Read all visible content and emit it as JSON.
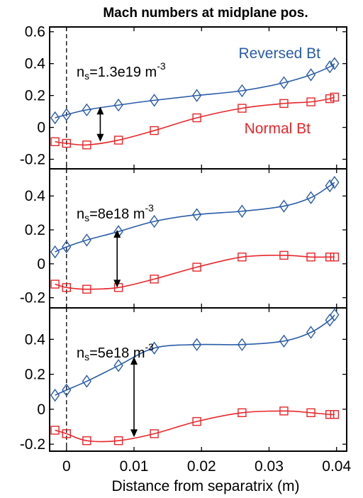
{
  "title": "Mach numbers at midplane pos.",
  "xlabel": "Distance from separatrix (m)",
  "colors": {
    "reversed": "#2a5ca8",
    "normal": "#e8262a",
    "frame": "#000000"
  },
  "chart_data": [
    {
      "type": "line",
      "density_label": {
        "prefix": "n",
        "sub": "s",
        "text": "=1.3e19 m",
        "sup": "-3"
      },
      "series": [
        {
          "name": "Reversed Bt",
          "marker": "diamond",
          "x": [
            -0.0017,
            0,
            0.003,
            0.0077,
            0.013,
            0.0193,
            0.026,
            0.0322,
            0.0362,
            0.039,
            0.0397
          ],
          "y": [
            0.06,
            0.08,
            0.11,
            0.14,
            0.17,
            0.2,
            0.23,
            0.28,
            0.33,
            0.38,
            0.4
          ]
        },
        {
          "name": "Normal Bt",
          "marker": "square",
          "x": [
            -0.0017,
            0,
            0.003,
            0.0077,
            0.013,
            0.0193,
            0.026,
            0.0322,
            0.0362,
            0.039,
            0.0397
          ],
          "y": [
            -0.09,
            -0.1,
            -0.11,
            -0.08,
            -0.02,
            0.06,
            0.12,
            0.15,
            0.16,
            0.18,
            0.19
          ]
        }
      ],
      "arrow": {
        "x": 0.005,
        "y_top": 0.13,
        "y_bottom": -0.09
      },
      "yticks": [
        0.6,
        0.4,
        0.2,
        0,
        -0.2
      ],
      "ytick_labels": [
        "0.6",
        "0.4",
        "0.2",
        "0",
        "-0.2"
      ],
      "ylim": [
        -0.26,
        0.63
      ],
      "xlim": [
        -0.0025,
        0.0415
      ]
    },
    {
      "type": "line",
      "density_label": {
        "prefix": "n",
        "sub": "s",
        "text": "=8e18 m",
        "sup": "-3"
      },
      "series": [
        {
          "name": "Reversed Bt",
          "marker": "diamond",
          "x": [
            -0.0017,
            0,
            0.003,
            0.0077,
            0.013,
            0.0193,
            0.026,
            0.0322,
            0.0362,
            0.039,
            0.0397
          ],
          "y": [
            0.07,
            0.1,
            0.14,
            0.19,
            0.25,
            0.29,
            0.31,
            0.34,
            0.39,
            0.46,
            0.48
          ]
        },
        {
          "name": "Normal Bt",
          "marker": "square",
          "x": [
            -0.0017,
            0,
            0.003,
            0.0077,
            0.013,
            0.0193,
            0.026,
            0.0322,
            0.0362,
            0.039,
            0.0397
          ],
          "y": [
            -0.12,
            -0.14,
            -0.15,
            -0.14,
            -0.09,
            -0.02,
            0.04,
            0.05,
            0.04,
            0.04,
            0.04
          ]
        }
      ],
      "arrow": {
        "x": 0.0075,
        "y_top": 0.2,
        "y_bottom": -0.14
      },
      "yticks": [
        0.4,
        0.2,
        0,
        -0.2
      ],
      "ytick_labels": [
        "0.4",
        "0.2",
        "0",
        "-0.2"
      ],
      "ylim": [
        -0.26,
        0.56
      ],
      "xlim": [
        -0.0025,
        0.0415
      ]
    },
    {
      "type": "line",
      "density_label": {
        "prefix": "n",
        "sub": "s",
        "text": "=5e18 m",
        "sup": "-3"
      },
      "series": [
        {
          "name": "Reversed Bt",
          "marker": "diamond",
          "x": [
            -0.0017,
            0,
            0.003,
            0.0077,
            0.013,
            0.0193,
            0.026,
            0.0322,
            0.0362,
            0.039,
            0.0397
          ],
          "y": [
            0.08,
            0.11,
            0.16,
            0.25,
            0.35,
            0.37,
            0.37,
            0.39,
            0.44,
            0.51,
            0.54
          ]
        },
        {
          "name": "Normal Bt",
          "marker": "square",
          "x": [
            -0.0017,
            0,
            0.003,
            0.0077,
            0.013,
            0.0193,
            0.026,
            0.0322,
            0.0362,
            0.039,
            0.0397
          ],
          "y": [
            -0.12,
            -0.14,
            -0.18,
            -0.18,
            -0.14,
            -0.07,
            -0.02,
            -0.01,
            -0.02,
            -0.03,
            -0.03
          ]
        }
      ],
      "arrow": {
        "x": 0.01,
        "y_top": 0.3,
        "y_bottom": -0.16
      },
      "yticks": [
        0.4,
        0.2,
        0,
        -0.2
      ],
      "ytick_labels": [
        "0.4",
        "0.2",
        "0",
        "-0.2"
      ],
      "ylim": [
        -0.24,
        0.58
      ],
      "xlim": [
        -0.0025,
        0.0415
      ]
    }
  ],
  "xticks": [
    0,
    0.01,
    0.02,
    0.03,
    0.04
  ],
  "xtick_labels": [
    "0",
    "0.01",
    "0.02",
    "0.03",
    "0.04"
  ]
}
